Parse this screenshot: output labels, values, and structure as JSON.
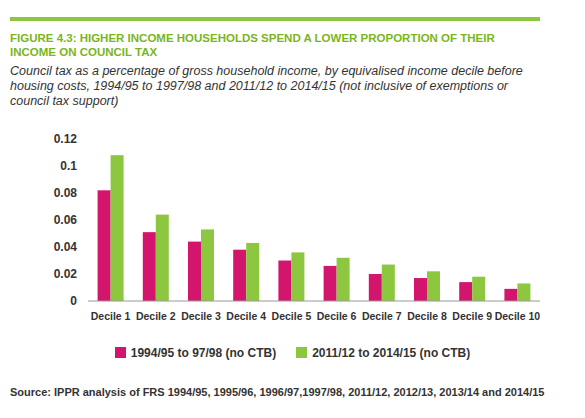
{
  "chart_data": {
    "type": "bar",
    "title": "FIGURE 4.3: HIGHER INCOME HOUSEHOLDS SPEND A LOWER PROPORTION OF THEIR INCOME ON COUNCIL TAX",
    "subtitle": "Council tax as a percentage of gross household income, by equivalised income decile before housing costs, 1994/95 to 1997/98 and 2011/12 to 2014/15 (not inclusive of exemptions or council tax support)",
    "source": "Source: IPPR analysis of FRS 1994/95, 1995/96, 1996/97,1997/98, 2011/12, 2012/13, 2013/14 and 2014/15",
    "categories": [
      "Decile 1",
      "Decile 2",
      "Decile 3",
      "Decile 4",
      "Decile 5",
      "Decile 6",
      "Decile 7",
      "Decile 8",
      "Decile 9",
      "Decile 10"
    ],
    "series": [
      {
        "name": "1994/95 to 97/98 (no CTB)",
        "color": "#d4156e",
        "values": [
          0.082,
          0.051,
          0.044,
          0.038,
          0.03,
          0.026,
          0.02,
          0.017,
          0.014,
          0.009
        ]
      },
      {
        "name": "2011/12 to 2014/15 (no CTB)",
        "color": "#8dc63f",
        "values": [
          0.108,
          0.064,
          0.053,
          0.043,
          0.036,
          0.032,
          0.027,
          0.022,
          0.018,
          0.013
        ]
      }
    ],
    "ylim": [
      0,
      0.12
    ],
    "yticks": [
      0,
      0.02,
      0.04,
      0.06,
      0.08,
      0.1,
      0.12
    ],
    "grid": false,
    "legend": "bottom"
  }
}
